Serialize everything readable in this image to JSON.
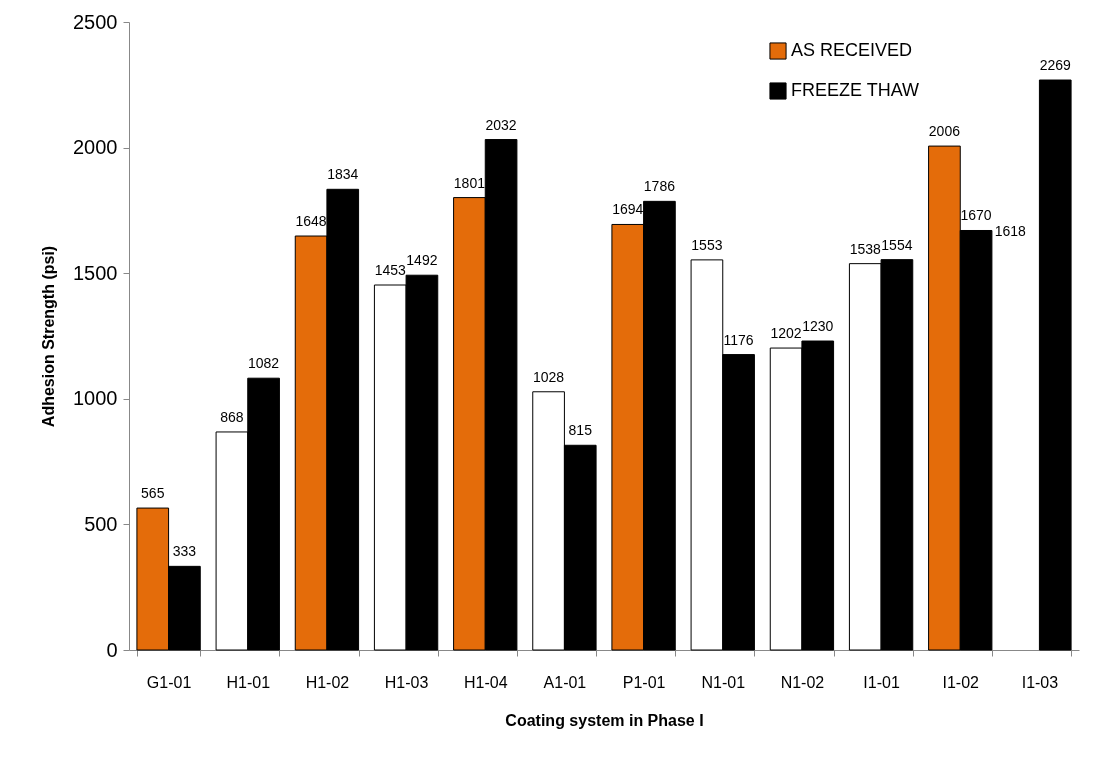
{
  "chart_data": {
    "type": "bar",
    "xlabel": "Coating system in Phase I",
    "ylabel": "Adhesion Strength (psi)",
    "categories": [
      "G1-01",
      "H1-01",
      "H1-02",
      "H1-03",
      "H1-04",
      "A1-01",
      "P1-01",
      "N1-01",
      "N1-02",
      "I1-01",
      "I1-02",
      "I1-03"
    ],
    "series": [
      {
        "name": "AS RECEIVED",
        "color": "#e46c0a",
        "colors": [
          "#e46c0a",
          "#ffffff",
          "#e46c0a",
          "#ffffff",
          "#e46c0a",
          "#ffffff",
          "#e46c0a",
          "#ffffff",
          "#ffffff",
          "#ffffff",
          "#e46c0a",
          null
        ],
        "values": [
          565,
          868,
          1648,
          1453,
          1801,
          1028,
          1694,
          1553,
          1202,
          1538,
          2006,
          null
        ]
      },
      {
        "name": "FREEZE THAW",
        "color": "#000000",
        "values": [
          333,
          1082,
          1834,
          1492,
          2032,
          815,
          1786,
          1176,
          1230,
          1554,
          1670,
          2269
        ]
      }
    ],
    "ylim": [
      0,
      2500
    ],
    "yticks": [
      0,
      500,
      1000,
      1500,
      2000,
      2500
    ],
    "data_labels": true,
    "legend": "top right",
    "annotations": [
      {
        "text": "1618",
        "x": "I1-02",
        "y": 1618
      }
    ]
  }
}
